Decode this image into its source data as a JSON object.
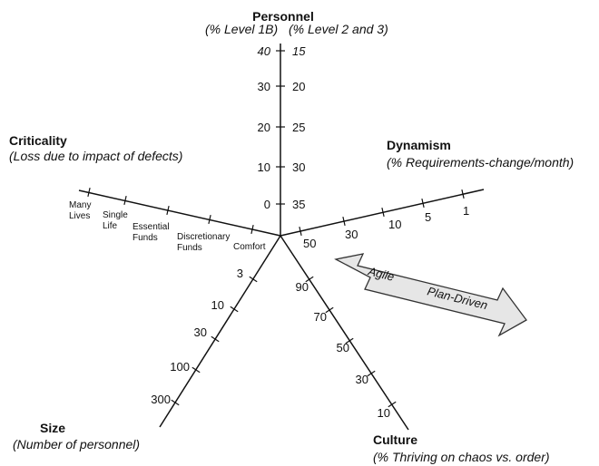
{
  "axes": {
    "personnel": {
      "title": "Personnel",
      "subtitle_left": "(% Level 1B)",
      "subtitle_right": "(% Level 2 and 3)",
      "left_ticks": [
        "40",
        "30",
        "20",
        "10",
        "0"
      ],
      "right_ticks": [
        "15",
        "20",
        "25",
        "30",
        "35"
      ]
    },
    "dynamism": {
      "title": "Dynamism",
      "subtitle_prefix": "(% Requirements-",
      "subtitle_suffix": "change/month)",
      "ticks": [
        "50",
        "30",
        "10",
        "5",
        "1"
      ]
    },
    "criticality": {
      "title": "Criticality",
      "subtitle": "(Loss due to impact of defects)",
      "ticks": [
        {
          "line1": "Many",
          "line2": "Lives"
        },
        {
          "line1": "Single",
          "line2": "Life"
        },
        {
          "line1": "Essential",
          "line2": "Funds"
        },
        {
          "line1": "Discretionary",
          "line2": "Funds"
        },
        {
          "line1": "Comfort",
          "line2": ""
        }
      ]
    },
    "size": {
      "title": "Size",
      "subtitle": "(Number of personnel)",
      "ticks": [
        "3",
        "10",
        "30",
        "100",
        "300"
      ]
    },
    "culture": {
      "title": "Culture",
      "subtitle": "(% Thriving on chaos vs. order)",
      "ticks": [
        "90",
        "70",
        "50",
        "30",
        "10"
      ]
    }
  },
  "arrow": {
    "label_left": "Agile",
    "label_right": "Plan-Driven",
    "fill_color": "#e6e6e6"
  }
}
